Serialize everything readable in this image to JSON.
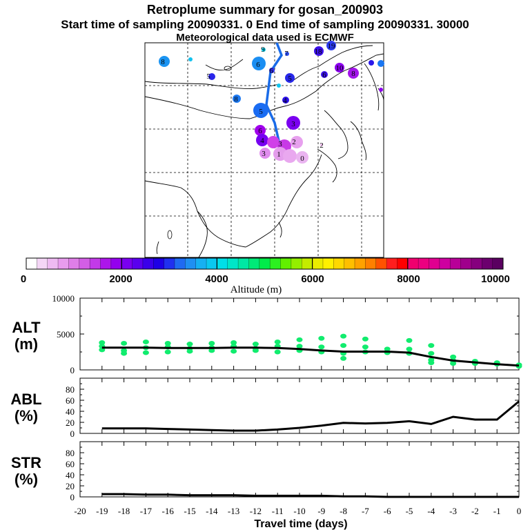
{
  "header": {
    "title": "Retroplume summary for gosan_200903",
    "sampling_line": "Start time of sampling 20090331.    0     End time of sampling 20090331. 30000",
    "met_line": "Meteorological data used is ECMWF"
  },
  "colorbar": {
    "tick_labels": [
      "0",
      "2000",
      "4000",
      "6000",
      "8000",
      "10000"
    ],
    "label": "Altitude  (m)",
    "colors": [
      "#ffffff",
      "#f4d6f6",
      "#eebaf2",
      "#e89cee",
      "#df7ee8",
      "#d35ee6",
      "#c23ae8",
      "#ad15ea",
      "#9400ee",
      "#7a00f0",
      "#5a00ee",
      "#3a00ea",
      "#1e00e6",
      "#2030f0",
      "#1f6af2",
      "#1f8ff2",
      "#16b0f2",
      "#0ac8f0",
      "#00dfe8",
      "#00e6c8",
      "#00e8a4",
      "#00ea78",
      "#00ec4a",
      "#2cf020",
      "#62f000",
      "#94ee00",
      "#c4ec00",
      "#eaec00",
      "#fff000",
      "#ffd800",
      "#ffbf00",
      "#ffa200",
      "#ff8000",
      "#ff5200",
      "#ff1e1e",
      "#ff0000",
      "#f0006e",
      "#ec0080",
      "#e00090",
      "#ce00a0",
      "#b80098",
      "#a0008c",
      "#86007e",
      "#6c006e",
      "#5a0060"
    ]
  },
  "map": {
    "plume_labels": [
      "19",
      "18",
      "17",
      "16",
      "15",
      "14",
      "13",
      "12",
      "11",
      "10",
      "9",
      "8",
      "7",
      "6",
      "5",
      "4",
      "3",
      "2",
      "1",
      "0"
    ]
  },
  "chart_data": [
    {
      "type": "line",
      "id": "ALT",
      "ylabel_top": "ALT",
      "ylabel_bottom": "(m)",
      "ylim": [
        0,
        10000
      ],
      "yticks": [
        "10000",
        "5000",
        "0"
      ],
      "x": [
        -19,
        -18,
        -17,
        -16,
        -15,
        -14,
        -13,
        -12,
        -11,
        -10,
        -9,
        -8,
        -7,
        -6,
        -5,
        -4,
        -3,
        -2,
        -1,
        0
      ],
      "mean": [
        3100,
        3100,
        3100,
        3050,
        3050,
        3050,
        3100,
        3100,
        3050,
        2900,
        2700,
        2550,
        2550,
        2550,
        2400,
        1800,
        1300,
        1050,
        800,
        600
      ],
      "scatter_color": "#11ec6e",
      "scatter": [
        [
          -19,
          3800
        ],
        [
          -19,
          3300
        ],
        [
          -19,
          2800
        ],
        [
          -18,
          3700
        ],
        [
          -18,
          2700
        ],
        [
          -18,
          2300
        ],
        [
          -17,
          3900
        ],
        [
          -17,
          3100
        ],
        [
          -17,
          2400
        ],
        [
          -16,
          3700
        ],
        [
          -16,
          3200
        ],
        [
          -16,
          2500
        ],
        [
          -15,
          3600
        ],
        [
          -15,
          3000
        ],
        [
          -15,
          2600
        ],
        [
          -14,
          3700
        ],
        [
          -14,
          3100
        ],
        [
          -14,
          2700
        ],
        [
          -13,
          3800
        ],
        [
          -13,
          3300
        ],
        [
          -13,
          2600
        ],
        [
          -12,
          3600
        ],
        [
          -12,
          3000
        ],
        [
          -12,
          2700
        ],
        [
          -11,
          3900
        ],
        [
          -11,
          3300
        ],
        [
          -11,
          2500
        ],
        [
          -10,
          4200
        ],
        [
          -10,
          3300
        ],
        [
          -10,
          2700
        ],
        [
          -9,
          4400
        ],
        [
          -9,
          3200
        ],
        [
          -9,
          2500
        ],
        [
          -8,
          4700
        ],
        [
          -8,
          3400
        ],
        [
          -8,
          2300
        ],
        [
          -8,
          1600
        ],
        [
          -7,
          4300
        ],
        [
          -7,
          3200
        ],
        [
          -7,
          2500
        ],
        [
          -6,
          2900
        ],
        [
          -6,
          2400
        ],
        [
          -5,
          4100
        ],
        [
          -5,
          2900
        ],
        [
          -5,
          2300
        ],
        [
          -4,
          3400
        ],
        [
          -4,
          2300
        ],
        [
          -4,
          1400
        ],
        [
          -4,
          1000
        ],
        [
          -3,
          1800
        ],
        [
          -3,
          1300
        ],
        [
          -3,
          900
        ],
        [
          -2,
          1200
        ],
        [
          -2,
          900
        ],
        [
          -1,
          1000
        ],
        [
          -1,
          800
        ],
        [
          0,
          700
        ],
        [
          0,
          500
        ]
      ]
    },
    {
      "type": "line",
      "id": "ABL",
      "ylabel_top": "ABL",
      "ylabel_bottom": "(%)",
      "ylim": [
        0,
        100
      ],
      "yticks": [
        "80",
        "60",
        "40",
        "20",
        "0"
      ],
      "x": [
        -19,
        -18,
        -17,
        -16,
        -15,
        -14,
        -13,
        -12,
        -11,
        -10,
        -9,
        -8,
        -7,
        -6,
        -5,
        -4,
        -3,
        -2,
        -1,
        0
      ],
      "values": [
        9,
        9,
        9,
        8,
        7,
        6,
        5,
        5,
        7,
        10,
        14,
        19,
        18,
        19,
        22,
        17,
        30,
        25,
        25,
        58
      ]
    },
    {
      "type": "line",
      "id": "STR",
      "ylabel_top": "STR",
      "ylabel_bottom": "(%)",
      "ylim": [
        0,
        100
      ],
      "yticks": [
        "80",
        "60",
        "40",
        "20",
        "0"
      ],
      "x": [
        -19,
        -18,
        -17,
        -16,
        -15,
        -14,
        -13,
        -12,
        -11,
        -10,
        -9,
        -8,
        -7,
        -6,
        -5,
        -4,
        -3,
        -2,
        -1,
        0
      ],
      "values": [
        5,
        5,
        4,
        4,
        3,
        3,
        3,
        2,
        2,
        2,
        2,
        1,
        1,
        0,
        0,
        0,
        0,
        0,
        0,
        0
      ]
    }
  ],
  "xaxis": {
    "tick_labels": [
      "-20",
      "-19",
      "-18",
      "-17",
      "-16",
      "-15",
      "-14",
      "-13",
      "-12",
      "-11",
      "-10",
      "-9",
      "-8",
      "-7",
      "-6",
      "-5",
      "-4",
      "-3",
      "-2",
      "-1",
      "0"
    ],
    "label": "Travel time (days)"
  }
}
